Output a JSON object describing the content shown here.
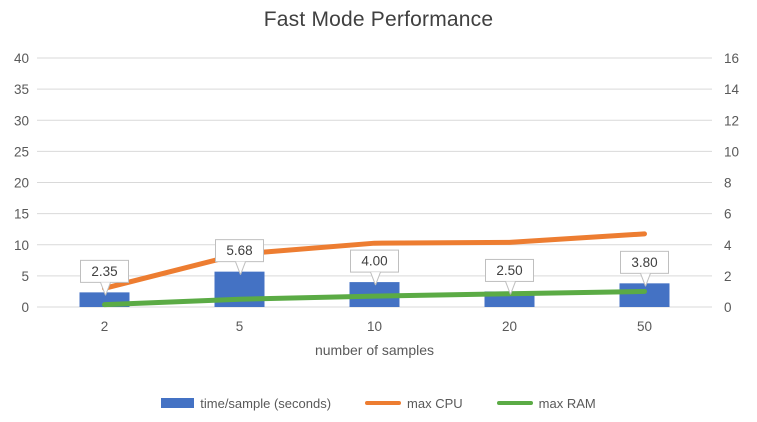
{
  "title": "Fast Mode Performance",
  "chart_data": {
    "type": "combo (bar + line, dual axis)",
    "title": "Fast Mode Performance",
    "xlabel": "number of samples",
    "categories": [
      "2",
      "5",
      "10",
      "20",
      "50"
    ],
    "series": [
      {
        "name": "time/sample (seconds)",
        "type": "bar",
        "axis": "left",
        "color": "#4472C4",
        "values": [
          2.35,
          5.68,
          4.0,
          2.5,
          3.8
        ],
        "data_labels": [
          "2.35",
          "5.68",
          "4.00",
          "2.50",
          "3.80"
        ]
      },
      {
        "name": "max CPU",
        "type": "line",
        "axis": "right",
        "color": "#ED7D31",
        "values": [
          1.2,
          3.4,
          4.1,
          4.15,
          4.7
        ]
      },
      {
        "name": "max RAM",
        "type": "line",
        "axis": "right",
        "color": "#5BAB45",
        "values": [
          0.15,
          0.5,
          0.7,
          0.85,
          1.0
        ]
      }
    ],
    "left_axis": {
      "min": 0,
      "max": 40,
      "step": 5,
      "ticks": [
        "0",
        "5",
        "10",
        "15",
        "20",
        "25",
        "30",
        "35",
        "40"
      ]
    },
    "right_axis": {
      "min": 0,
      "max": 16,
      "step": 2,
      "ticks": [
        "0",
        "2",
        "4",
        "6",
        "8",
        "10",
        "12",
        "14",
        "16"
      ]
    },
    "grid": true,
    "legend_position": "bottom"
  },
  "colors": {
    "background": "#FFFFFF",
    "bar": "#4472C4",
    "cpu_line": "#ED7D31",
    "ram_line": "#5BAB45",
    "gridline": "#D9D9D9",
    "tick_label": "#595959",
    "category_label": "#595959",
    "axis_title": "#595959",
    "chart_title": "#404040",
    "callout_border": "#BFBFBF",
    "callout_fill": "#FFFFFF",
    "callout_text": "#404040"
  }
}
